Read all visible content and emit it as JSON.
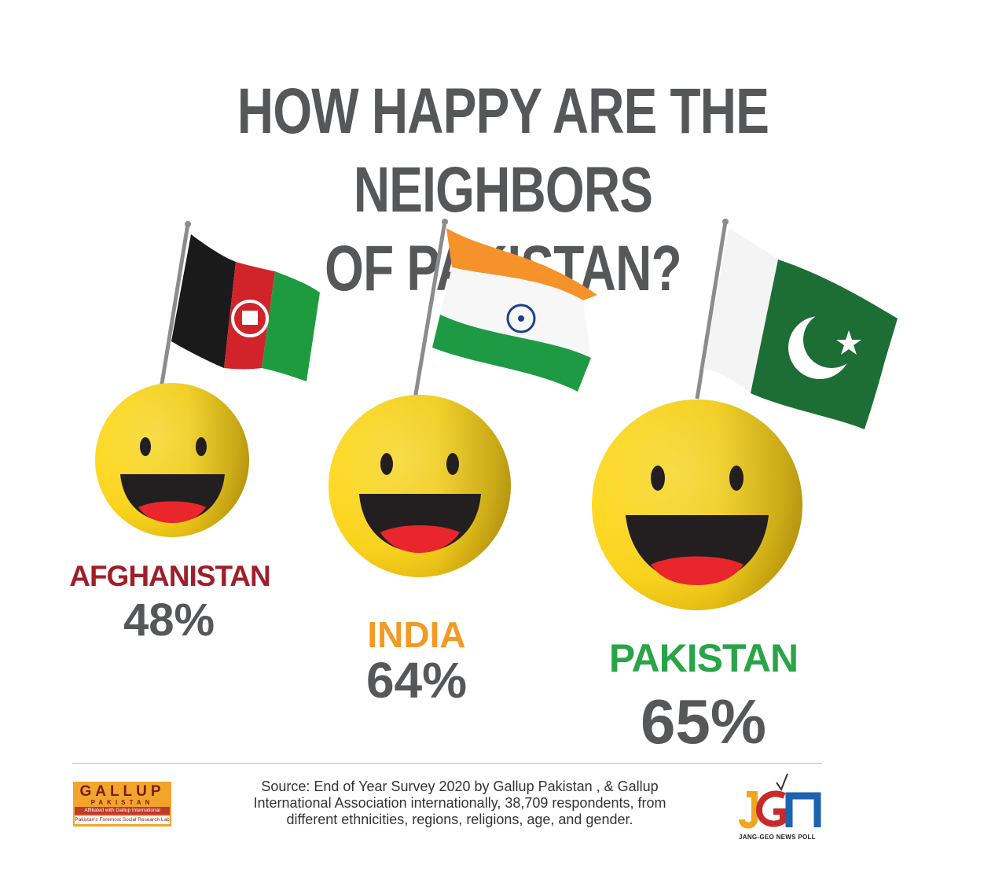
{
  "title_line1": "HOW HAPPY ARE THE NEIGHBORS",
  "title_line2": "OF PAKISTAN?",
  "countries": [
    {
      "name": "AFGHANISTAN",
      "percent": "48%",
      "value": 48,
      "color": "#9e1f2a"
    },
    {
      "name": "INDIA",
      "percent": "64%",
      "value": 64,
      "color": "#f39a24"
    },
    {
      "name": "PAKISTAN",
      "percent": "65%",
      "value": 65,
      "color": "#2aa448"
    }
  ],
  "source_line1": "Source: End of Year Survey 2020 by Gallup Pakistan , & Gallup",
  "source_line2": "International Association internationally, 38,709 respondents, from",
  "source_line3": "different ethnicities, regions, religions, age, and gender.",
  "gallup_logo": {
    "line1": "GALLUP",
    "line2": "PAKISTAN",
    "line3": "Affiliated with Gallup International",
    "line4": "Pakistan's Foremost Social Research Lab"
  },
  "jgn_logo": {
    "text": "JANG-GEO NEWS POLL"
  },
  "colors": {
    "title": "#555759",
    "smiley": "#fdd61d",
    "mouth": "#231f20",
    "tongue": "#e9262b"
  }
}
